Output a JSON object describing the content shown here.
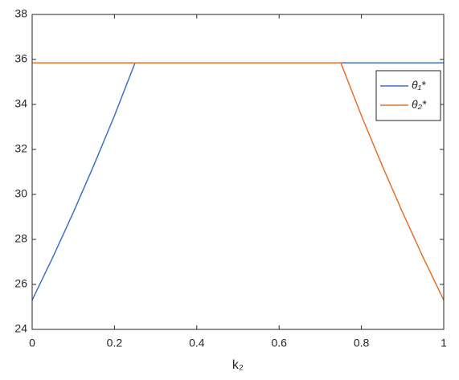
{
  "chart_data": {
    "type": "line",
    "xlabel": "k₂",
    "series": [
      {
        "name": "θ₁*",
        "color": "#3f6fc4",
        "x": [
          0,
          0.05,
          0.1,
          0.15,
          0.2,
          0.25,
          1
        ],
        "values": [
          25.3,
          27.2,
          29.2,
          31.3,
          33.5,
          35.85,
          35.85
        ]
      },
      {
        "name": "θ₂*",
        "color": "#e5702a",
        "x": [
          0,
          0.75,
          0.8,
          0.85,
          0.9,
          0.95,
          1
        ],
        "values": [
          35.85,
          35.85,
          33.5,
          31.3,
          29.2,
          27.2,
          25.3
        ]
      }
    ],
    "xlim": [
      0,
      1
    ],
    "xticks": [
      0,
      0.2,
      0.4,
      0.6,
      0.8,
      1
    ],
    "ylim": [
      24,
      38
    ],
    "yticks": [
      24,
      26,
      28,
      30,
      32,
      34,
      36,
      38
    ],
    "legend": "upper-right"
  }
}
